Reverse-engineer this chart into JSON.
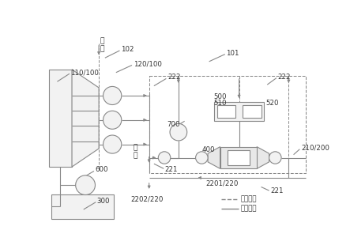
{
  "bg": "#ffffff",
  "lc": "#888888",
  "tc": "#333333",
  "fs": 6.2,
  "legend_dashed": "低压管路",
  "legend_solid": "高压管路",
  "jinye": "进\n液",
  "chuye": "出\n液",
  "labels": {
    "110_100": "110/100",
    "102": "102",
    "120_100": "120/100",
    "101": "101",
    "222a": "222",
    "222b": "222",
    "700": "700",
    "500": "500",
    "510": "510",
    "520": "520",
    "400": "400",
    "210_200": "210/200",
    "600": "600",
    "300": "300",
    "221a": "221",
    "221b": "221",
    "2202_220": "2202/220",
    "2201_220": "2201/220"
  }
}
